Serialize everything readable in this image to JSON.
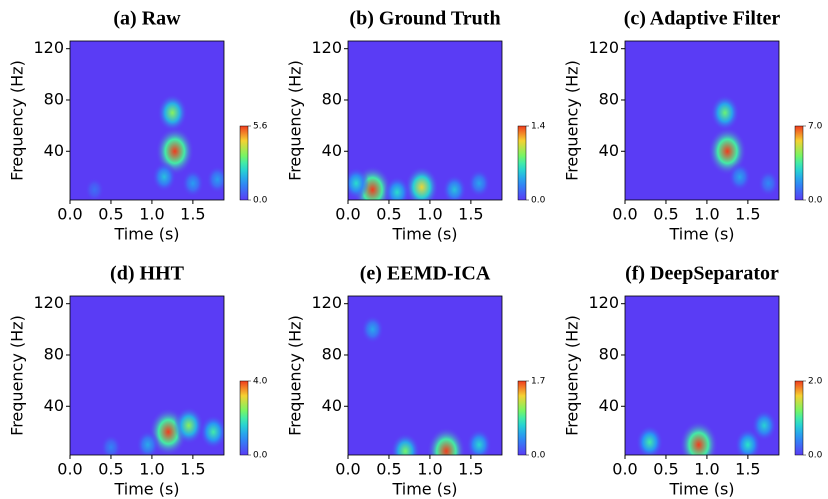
{
  "chart_data": [
    {
      "type": "heatmap",
      "title": "(a) Raw",
      "x_label": "Time (s)",
      "y_label": "Frequency (Hz)",
      "xlim": [
        0,
        1.88
      ],
      "xticks": [
        {
          "value": 0,
          "label": "0.0"
        },
        {
          "value": 0.5,
          "label": "0.5"
        },
        {
          "value": 1,
          "label": "1.0"
        },
        {
          "value": 1.5,
          "label": "1.5"
        }
      ],
      "ylim": [
        2,
        126
      ],
      "yticks": [
        40,
        80,
        120
      ],
      "colorbar": {
        "lim": [
          0,
          5.6
        ],
        "ticks": [
          {
            "value": 0,
            "label": "0.0"
          },
          {
            "value": 5.6,
            "label": "5.6"
          }
        ]
      },
      "x": [
        1.28,
        1.25,
        1.15,
        1.5,
        1.8,
        0.3
      ],
      "y": [
        40,
        70,
        20,
        15,
        18,
        10
      ],
      "values": [
        5.6,
        3.5,
        2.0,
        1.5,
        1.5,
        0.8
      ]
    },
    {
      "type": "heatmap",
      "title": "(b) Ground Truth",
      "x_label": "Time (s)",
      "y_label": "Frequency (Hz)",
      "xlim": [
        0,
        1.88
      ],
      "xticks": [
        {
          "value": 0,
          "label": "0.0"
        },
        {
          "value": 0.5,
          "label": "0.5"
        },
        {
          "value": 1,
          "label": "1.0"
        },
        {
          "value": 1.5,
          "label": "1.5"
        }
      ],
      "ylim": [
        2,
        126
      ],
      "yticks": [
        40,
        80,
        120
      ],
      "colorbar": {
        "lim": [
          0,
          1.4
        ],
        "ticks": [
          {
            "value": 0,
            "label": "0.0"
          },
          {
            "value": 1.4,
            "label": "1.4"
          }
        ]
      },
      "x": [
        0.3,
        0.9,
        0.1,
        0.6,
        1.3,
        1.6
      ],
      "y": [
        10,
        12,
        15,
        8,
        10,
        15
      ],
      "values": [
        1.4,
        1.1,
        0.6,
        0.6,
        0.5,
        0.4
      ]
    },
    {
      "type": "heatmap",
      "title": "(c) Adaptive Filter",
      "x_label": "Time (s)",
      "y_label": "Frequency (Hz)",
      "xlim": [
        0,
        1.88
      ],
      "xticks": [
        {
          "value": 0,
          "label": "0.0"
        },
        {
          "value": 0.5,
          "label": "0.5"
        },
        {
          "value": 1,
          "label": "1.0"
        },
        {
          "value": 1.5,
          "label": "1.5"
        }
      ],
      "ylim": [
        2,
        126
      ],
      "yticks": [
        40,
        80,
        120
      ],
      "colorbar": {
        "lim": [
          0,
          7.0
        ],
        "ticks": [
          {
            "value": 0,
            "label": "0.0"
          },
          {
            "value": 7.0,
            "label": "7.0"
          }
        ]
      },
      "x": [
        1.25,
        1.22,
        1.4,
        1.75
      ],
      "y": [
        40,
        70,
        20,
        15
      ],
      "values": [
        7.0,
        4.0,
        2.0,
        1.5
      ]
    },
    {
      "type": "heatmap",
      "title": "(d) HHT",
      "x_label": "Time (s)",
      "y_label": "Frequency (Hz)",
      "xlim": [
        0,
        1.88
      ],
      "xticks": [
        {
          "value": 0,
          "label": "0.0"
        },
        {
          "value": 0.5,
          "label": "0.5"
        },
        {
          "value": 1,
          "label": "1.0"
        },
        {
          "value": 1.5,
          "label": "1.5"
        }
      ],
      "ylim": [
        2,
        126
      ],
      "yticks": [
        40,
        80,
        120
      ],
      "colorbar": {
        "lim": [
          0,
          4.0
        ],
        "ticks": [
          {
            "value": 0,
            "label": "0.0"
          },
          {
            "value": 4.0,
            "label": "4.0"
          }
        ]
      },
      "x": [
        1.2,
        1.45,
        1.75,
        0.95,
        0.5
      ],
      "y": [
        20,
        25,
        20,
        10,
        8
      ],
      "values": [
        4.0,
        2.5,
        2.0,
        1.2,
        0.8
      ]
    },
    {
      "type": "heatmap",
      "title": "(e) EEMD-ICA",
      "x_label": "Time (s)",
      "y_label": "Frequency (Hz)",
      "xlim": [
        0,
        1.88
      ],
      "xticks": [
        {
          "value": 0,
          "label": "0.0"
        },
        {
          "value": 0.5,
          "label": "0.5"
        },
        {
          "value": 1,
          "label": "1.0"
        },
        {
          "value": 1.5,
          "label": "1.5"
        }
      ],
      "ylim": [
        2,
        126
      ],
      "yticks": [
        40,
        80,
        120
      ],
      "colorbar": {
        "lim": [
          0,
          1.7
        ],
        "ticks": [
          {
            "value": 0,
            "label": "0.0"
          },
          {
            "value": 1.7,
            "label": "1.7"
          }
        ]
      },
      "x": [
        1.2,
        0.7,
        1.6,
        0.3
      ],
      "y": [
        5,
        5,
        10,
        100
      ],
      "values": [
        1.7,
        1.0,
        0.7,
        0.5
      ]
    },
    {
      "type": "heatmap",
      "title": "(f) DeepSeparator",
      "x_label": "Time (s)",
      "y_label": "Frequency (Hz)",
      "xlim": [
        0,
        1.88
      ],
      "xticks": [
        {
          "value": 0,
          "label": "0.0"
        },
        {
          "value": 0.5,
          "label": "0.5"
        },
        {
          "value": 1,
          "label": "1.0"
        },
        {
          "value": 1.5,
          "label": "1.5"
        }
      ],
      "ylim": [
        2,
        126
      ],
      "yticks": [
        40,
        80,
        120
      ],
      "colorbar": {
        "lim": [
          0,
          2.0
        ],
        "ticks": [
          {
            "value": 0,
            "label": "0.0"
          },
          {
            "value": 2.0,
            "label": "2.0"
          }
        ]
      },
      "x": [
        0.3,
        0.9,
        1.5,
        1.7
      ],
      "y": [
        12,
        10,
        10,
        25
      ],
      "values": [
        1.0,
        2.0,
        0.9,
        0.8
      ]
    }
  ]
}
